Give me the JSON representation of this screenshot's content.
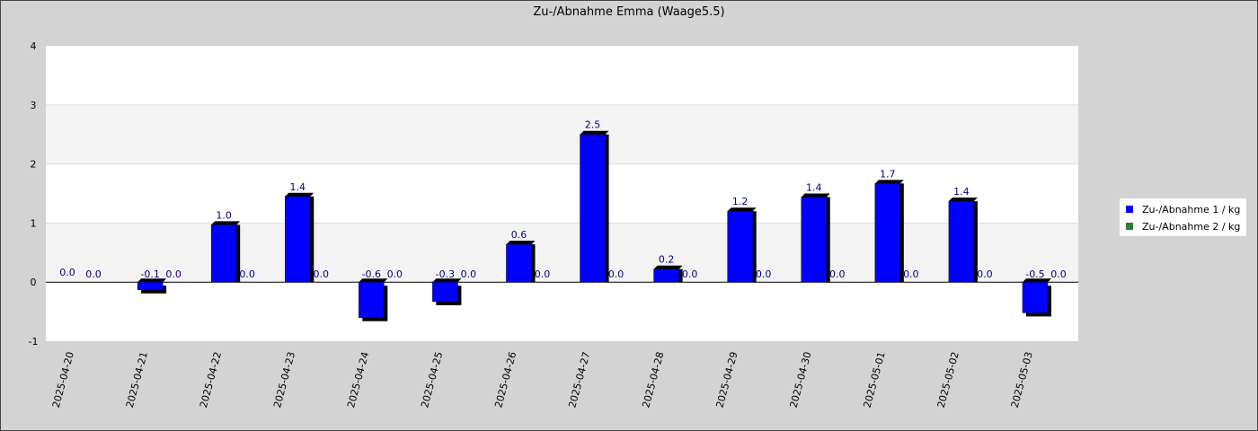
{
  "chart_data": {
    "type": "bar",
    "title": "Zu-/Abnahme Emma (Waage5.5)",
    "xlabel": "",
    "ylabel": "",
    "ylim": [
      -1,
      4
    ],
    "yticks": [
      -1,
      0,
      1,
      2,
      3,
      4
    ],
    "categories": [
      "2025-04-20",
      "2025-04-21",
      "2025-04-22",
      "2025-04-23",
      "2025-04-24",
      "2025-04-25",
      "2025-04-26",
      "2025-04-27",
      "2025-04-28",
      "2025-04-29",
      "2025-04-30",
      "2025-05-01",
      "2025-05-02",
      "2025-05-03"
    ],
    "series": [
      {
        "name": "Zu-/Abnahme 1 / kg",
        "color": "#0000ff",
        "values": [
          0.0,
          -0.13,
          0.97,
          1.45,
          -0.6,
          -0.33,
          0.64,
          2.5,
          0.22,
          1.2,
          1.44,
          1.67,
          1.37,
          -0.52
        ],
        "labels": [
          "0.0",
          "-0.1",
          "1.0",
          "1.4",
          "-0.6",
          "-0.3",
          "0.6",
          "2.5",
          "0.2",
          "1.2",
          "1.4",
          "1.7",
          "1.4",
          "-0.5"
        ]
      },
      {
        "name": "Zu-/Abnahme 2 / kg",
        "color": "#2e7d32",
        "values": [
          0,
          0,
          0,
          0,
          0,
          0,
          0,
          0,
          0,
          0,
          0,
          0,
          0,
          0
        ],
        "labels": [
          "0.0",
          "0.0",
          "0.0",
          "0.0",
          "0.0",
          "0.0",
          "0.0",
          "0.0",
          "0.0",
          "0.0",
          "0.0",
          "0.0",
          "0.0",
          "0.0"
        ]
      }
    ],
    "grid": true,
    "legend_position": "right"
  }
}
